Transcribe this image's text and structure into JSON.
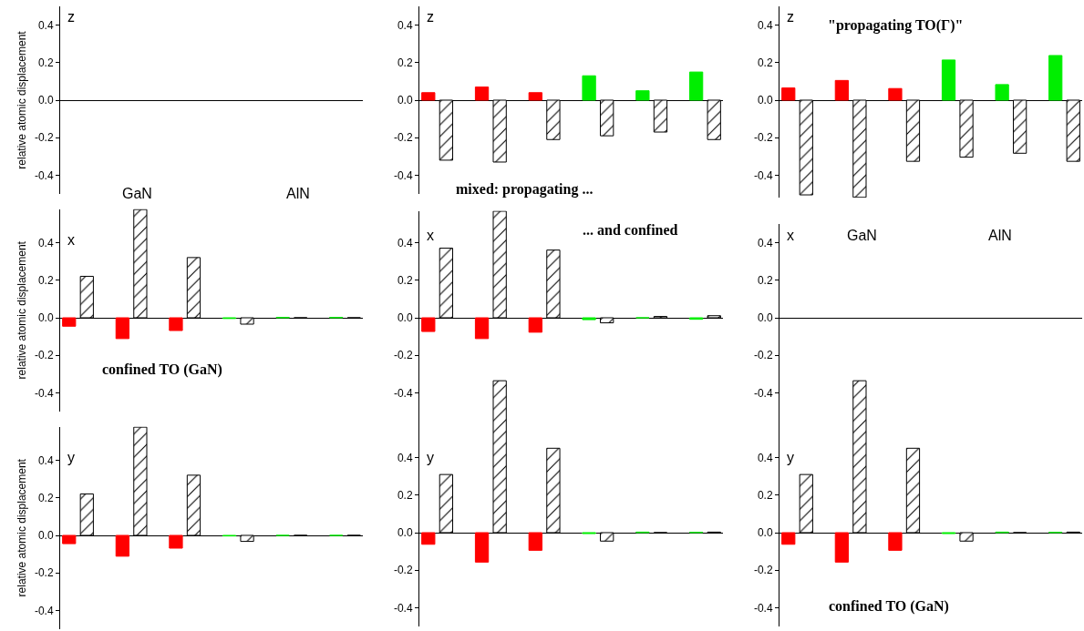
{
  "chart_data": [
    {
      "type": "bar",
      "categories": [
        null,
        null,
        null,
        null,
        null,
        null
      ],
      "ylabel": "relative atomic displacement",
      "annotations": [
        "z",
        "GaN",
        "AlN"
      ],
      "ylim": [
        -0.5,
        0.5
      ],
      "yticks": [
        {
          "value": -0.4,
          "label": "-0.4"
        },
        {
          "value": -0.2,
          "label": "-0.2"
        },
        {
          "value": 0,
          "label": "0.0"
        },
        {
          "value": 0.2,
          "label": "0.2"
        },
        {
          "value": 0.4,
          "label": "0.4"
        }
      ],
      "tick_labels": "y"
    },
    {
      "type": "bar",
      "categories": [
        null,
        null,
        null,
        null,
        null,
        null
      ],
      "annotations": [
        "z",
        "mixed: propagating ..."
      ],
      "ylim": [
        -0.5,
        0.5
      ],
      "yticks": [
        {
          "value": -0.4,
          "label": "-0.4"
        },
        {
          "value": -0.2,
          "label": "-0.2"
        },
        {
          "value": 0,
          "label": "0.0"
        },
        {
          "value": 0.2,
          "label": "0.2"
        },
        {
          "value": 0.4,
          "label": "0.4"
        }
      ],
      "tick_labels": "y",
      "series": [
        {
          "colors": [
            "#ff0000",
            "#ff0000",
            "#ff0000",
            "#00ee00",
            "#00ee00",
            "#00ee00"
          ],
          "values": [
            0.04,
            0.07,
            0.04,
            0.13,
            0.05,
            0.15
          ]
        },
        {
          "color": "#000000",
          "values": [
            -0.32,
            -0.33,
            -0.21,
            -0.19,
            -0.17,
            -0.21
          ]
        }
      ]
    },
    {
      "type": "bar",
      "categories": [
        null,
        null,
        null,
        null,
        null,
        null
      ],
      "annotations": [
        "z",
        "\"propagating TO(Γ)\""
      ],
      "ylim": [
        -0.52,
        0.5
      ],
      "yticks": [
        {
          "value": -0.4,
          "label": "-0.4"
        },
        {
          "value": -0.2,
          "label": "-0.2"
        },
        {
          "value": 0,
          "label": "0.0"
        },
        {
          "value": 0.2,
          "label": "0.2"
        },
        {
          "value": 0.4,
          "label": "0.4"
        }
      ],
      "tick_labels": "y",
      "series": [
        {
          "colors": [
            "#ff0000",
            "#ff0000",
            "#ff0000",
            "#00ee00",
            "#00ee00",
            "#00ee00"
          ],
          "values": [
            0.065,
            0.105,
            0.062,
            0.214,
            0.083,
            0.238
          ]
        },
        {
          "color": "#000000",
          "values": [
            -0.505,
            -0.518,
            -0.326,
            -0.304,
            -0.283,
            -0.326
          ]
        }
      ]
    },
    {
      "type": "bar",
      "categories": [
        null,
        null,
        null,
        null,
        null,
        null
      ],
      "ylabel": "relative atomic displacement",
      "annotations": [
        "x",
        "confined TO (GaN)"
      ],
      "ylim": [
        -0.5,
        0.58
      ],
      "yticks": [
        {
          "value": -0.4,
          "label": "-0.4"
        },
        {
          "value": -0.2,
          "label": "-0.2"
        },
        {
          "value": 0,
          "label": "0.0"
        },
        {
          "value": 0.2,
          "label": "0.2"
        },
        {
          "value": 0.4,
          "label": "0.4"
        }
      ],
      "tick_labels": "y",
      "series": [
        {
          "colors": [
            "#ff0000",
            "#ff0000",
            "#ff0000",
            "#00ee00",
            "#00ee00",
            "#00ee00"
          ],
          "values": [
            -0.045,
            -0.111,
            -0.068,
            -0.004,
            0.002,
            0.002
          ]
        },
        {
          "color": "#000000",
          "values": [
            0.221,
            0.577,
            0.321,
            -0.034,
            0,
            0
          ]
        }
      ]
    },
    {
      "type": "bar",
      "categories": [
        null,
        null,
        null,
        null,
        null,
        null
      ],
      "annotations": [
        "x",
        "... and confined"
      ],
      "ylim": [
        -0.5,
        0.57
      ],
      "yticks": [
        {
          "value": -0.4,
          "label": "-0.4"
        },
        {
          "value": -0.2,
          "label": "-0.2"
        },
        {
          "value": 0,
          "label": "0.0"
        },
        {
          "value": 0.2,
          "label": "0.2"
        },
        {
          "value": 0.4,
          "label": "0.4"
        }
      ],
      "tick_labels": "y",
      "series": [
        {
          "colors": [
            "#ff0000",
            "#ff0000",
            "#ff0000",
            "#00ee00",
            "#00ee00",
            "#00ee00"
          ],
          "values": [
            -0.073,
            -0.111,
            -0.077,
            -0.01,
            0,
            -0.008
          ]
        },
        {
          "color": "#000000",
          "values": [
            0.371,
            0.568,
            0.361,
            -0.027,
            0.007,
            0.011
          ]
        }
      ]
    },
    {
      "type": "bar",
      "categories": [
        null,
        null,
        null,
        null,
        null,
        null
      ],
      "annotations": [
        "x",
        "GaN",
        "AlN"
      ],
      "ylim": [
        -0.5,
        0.5
      ],
      "yticks": [
        {
          "value": -0.4,
          "label": "-0.4"
        },
        {
          "value": -0.2,
          "label": "-0.2"
        },
        {
          "value": 0,
          "label": "0.0"
        },
        {
          "value": 0.2,
          "label": "0.2"
        },
        {
          "value": 0.4,
          "label": "0.4"
        }
      ],
      "tick_labels": "y"
    },
    {
      "type": "bar",
      "categories": [
        null,
        null,
        null,
        null,
        null,
        null
      ],
      "ylabel": "relative atomic displacement",
      "annotations": [
        "y"
      ],
      "ylim": [
        -0.5,
        0.58
      ],
      "yticks": [
        {
          "value": -0.4,
          "label": "-0.4"
        },
        {
          "value": -0.2,
          "label": "-0.2"
        },
        {
          "value": 0,
          "label": "0.0"
        },
        {
          "value": 0.2,
          "label": "0.2"
        },
        {
          "value": 0.4,
          "label": "0.4"
        }
      ],
      "tick_labels": "y",
      "series": [
        {
          "colors": [
            "#ff0000",
            "#ff0000",
            "#ff0000",
            "#00ee00",
            "#00ee00",
            "#00ee00"
          ],
          "values": [
            -0.044,
            -0.111,
            -0.068,
            -0.003,
            0,
            0
          ]
        },
        {
          "color": "#000000",
          "values": [
            0.221,
            0.577,
            0.321,
            -0.032,
            0,
            0
          ]
        }
      ]
    },
    {
      "type": "bar",
      "categories": [
        null,
        null,
        null,
        null,
        null,
        null
      ],
      "annotations": [
        "y"
      ],
      "ylim": [
        -0.5,
        0.82
      ],
      "yticks": [
        {
          "value": -0.4,
          "label": "-0.4"
        },
        {
          "value": -0.2,
          "label": "-0.2"
        },
        {
          "value": 0,
          "label": "0.0"
        },
        {
          "value": 0.2,
          "label": "0.2"
        },
        {
          "value": 0.4,
          "label": "0.4"
        }
      ],
      "tick_labels": "y",
      "series": [
        {
          "colors": [
            "#ff0000",
            "#ff0000",
            "#ff0000",
            "#00ee00",
            "#00ee00",
            "#00ee00"
          ],
          "values": [
            -0.062,
            -0.157,
            -0.094,
            -0.005,
            0.003,
            0.002
          ]
        },
        {
          "color": "#000000",
          "values": [
            0.31,
            0.81,
            0.45,
            -0.045,
            0,
            0.003
          ]
        }
      ]
    },
    {
      "type": "bar",
      "categories": [
        null,
        null,
        null,
        null,
        null,
        null
      ],
      "annotations": [
        "y",
        "confined TO (GaN)"
      ],
      "ylim": [
        -0.5,
        0.82
      ],
      "yticks": [
        {
          "value": -0.4,
          "label": "-0.4"
        },
        {
          "value": -0.2,
          "label": "-0.2"
        },
        {
          "value": 0,
          "label": "0.0"
        },
        {
          "value": 0.2,
          "label": "0.2"
        },
        {
          "value": 0.4,
          "label": "0.4"
        }
      ],
      "tick_labels": "y",
      "series": [
        {
          "colors": [
            "#ff0000",
            "#ff0000",
            "#ff0000",
            "#00ee00",
            "#00ee00",
            "#00ee00"
          ],
          "values": [
            -0.062,
            -0.157,
            -0.094,
            -0.005,
            0.003,
            0.002
          ]
        },
        {
          "color": "#000000",
          "values": [
            0.31,
            0.81,
            0.45,
            -0.045,
            0,
            0.003
          ]
        }
      ]
    }
  ]
}
